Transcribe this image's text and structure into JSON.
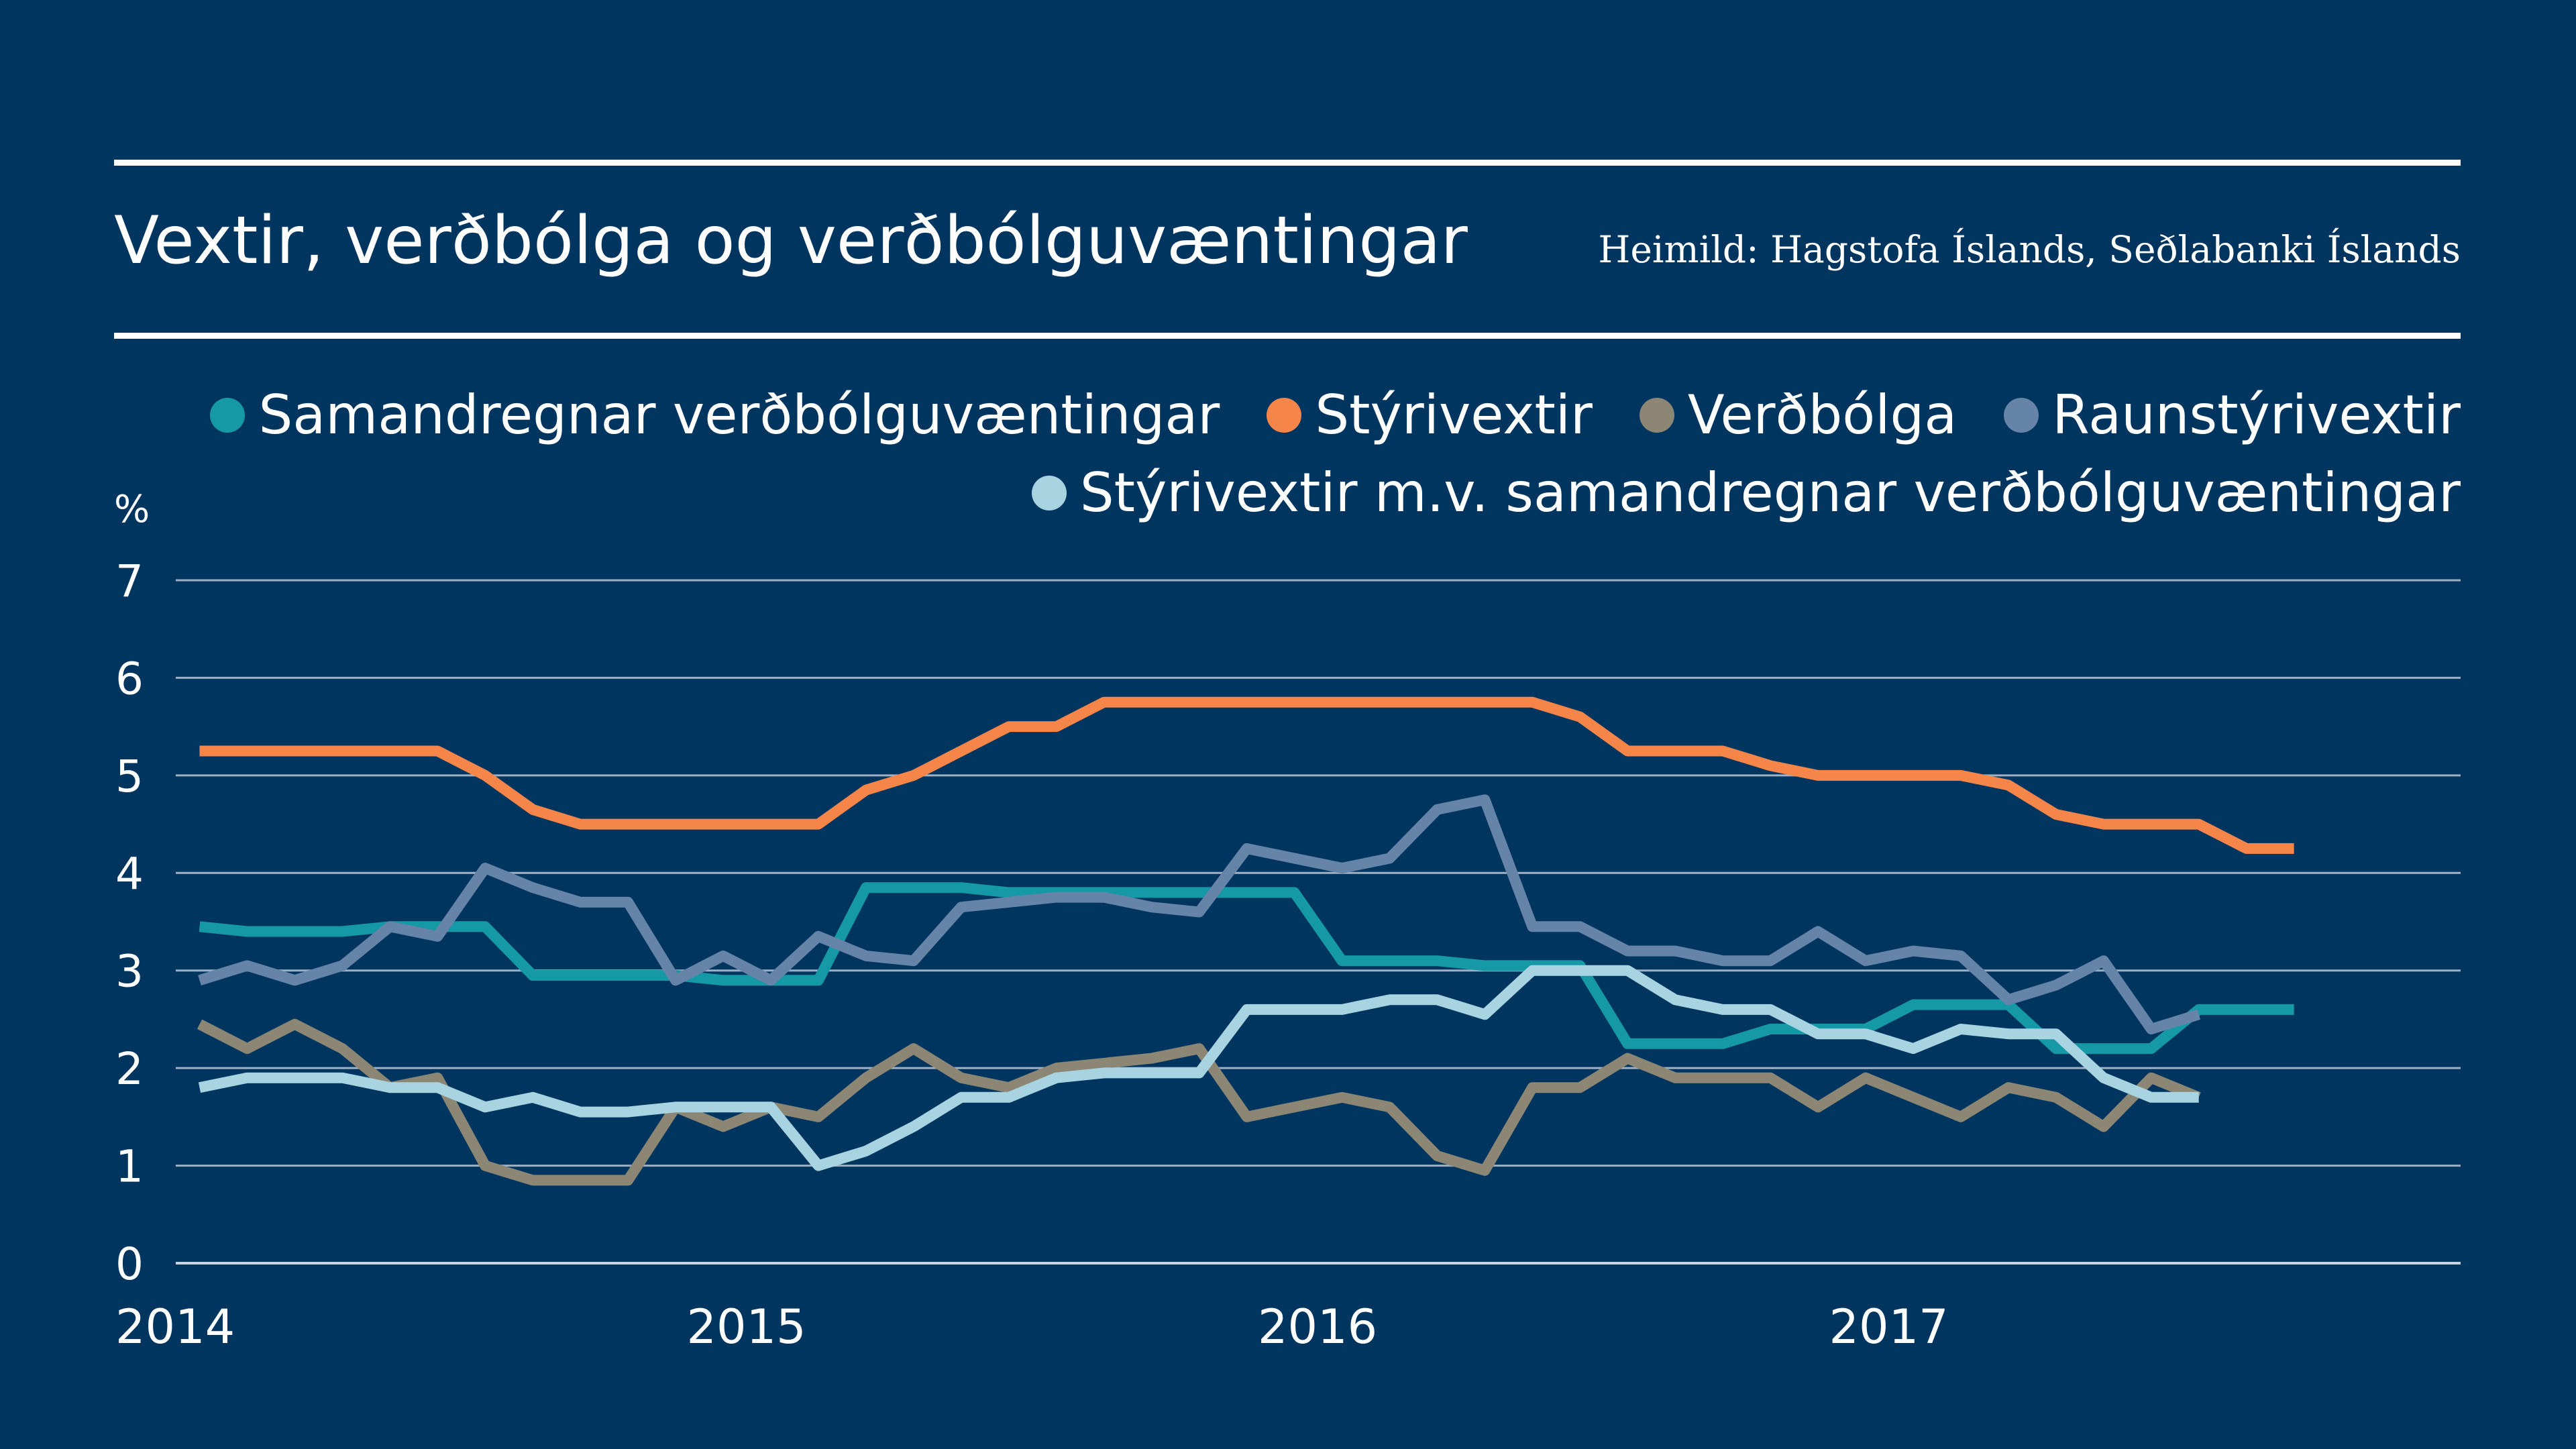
{
  "title": "Vextir, verðbólga og verðbólguvæntingar",
  "source": "Heimild: Hagstofa Íslands, Seðlabanki Íslands",
  "legend": [
    {
      "label": "Samandregnar verðbólguvæntingar",
      "color": "#1599a6"
    },
    {
      "label": "Stýrivextir",
      "color": "#f58549"
    },
    {
      "label": "Verðbólga",
      "color": "#8c8674"
    },
    {
      "label": "Raunstýrivextir",
      "color": "#6584a8"
    },
    {
      "label": "Stýrivextir m.v. samandregnar verðbólguvæntingar",
      "color": "#a8d3e0"
    }
  ],
  "chart_data": {
    "type": "line",
    "ylabel": "%",
    "ylim": [
      0,
      7
    ],
    "yticks": [
      "0",
      "1",
      "2",
      "3",
      "4",
      "5",
      "6",
      "7"
    ],
    "xlim": [
      "2014-01",
      "2017-12"
    ],
    "xticks": [
      "2014",
      "2015",
      "2016",
      "2017"
    ],
    "x": [
      "2014-01",
      "2014-02",
      "2014-03",
      "2014-04",
      "2014-05",
      "2014-06",
      "2014-07",
      "2014-08",
      "2014-09",
      "2014-10",
      "2014-11",
      "2014-12",
      "2015-01",
      "2015-02",
      "2015-03",
      "2015-04",
      "2015-05",
      "2015-06",
      "2015-07",
      "2015-08",
      "2015-09",
      "2015-10",
      "2015-11",
      "2015-12",
      "2016-01",
      "2016-02",
      "2016-03",
      "2016-04",
      "2016-05",
      "2016-06",
      "2016-07",
      "2016-08",
      "2016-09",
      "2016-10",
      "2016-11",
      "2016-12",
      "2017-01",
      "2017-02",
      "2017-03",
      "2017-04",
      "2017-05",
      "2017-06",
      "2017-07",
      "2017-08",
      "2017-09",
      "2017-10",
      "2017-11",
      "2017-12"
    ],
    "grid": true,
    "series": [
      {
        "name": "Samandregnar verðbólguvæntingar",
        "color": "#1599a6",
        "values": [
          3.45,
          3.4,
          3.4,
          3.4,
          3.45,
          3.45,
          3.45,
          2.95,
          2.95,
          2.95,
          2.95,
          2.9,
          2.9,
          2.9,
          3.85,
          3.85,
          3.85,
          3.8,
          3.8,
          3.8,
          3.8,
          3.8,
          3.8,
          3.8,
          3.1,
          3.1,
          3.1,
          3.05,
          3.05,
          3.05,
          2.25,
          2.25,
          2.25,
          2.4,
          2.4,
          2.4,
          2.65,
          2.65,
          2.65,
          2.2,
          2.2,
          2.2,
          2.6,
          2.6,
          2.6,
          null,
          null,
          null
        ]
      },
      {
        "name": "Stýrivextir",
        "color": "#f58549",
        "values": [
          5.25,
          5.25,
          5.25,
          5.25,
          5.25,
          5.25,
          5.0,
          4.65,
          4.5,
          4.5,
          4.5,
          4.5,
          4.5,
          4.5,
          4.85,
          5.0,
          5.25,
          5.5,
          5.5,
          5.75,
          5.75,
          5.75,
          5.75,
          5.75,
          5.75,
          5.75,
          5.75,
          5.75,
          5.75,
          5.6,
          5.25,
          5.25,
          5.25,
          5.1,
          5.0,
          5.0,
          5.0,
          5.0,
          4.9,
          4.6,
          4.5,
          4.5,
          4.5,
          4.25,
          4.25,
          null,
          null,
          null
        ]
      },
      {
        "name": "Verðbólga",
        "color": "#8c8674",
        "values": [
          2.45,
          2.2,
          2.45,
          2.2,
          1.8,
          1.9,
          1.0,
          0.85,
          0.85,
          0.85,
          1.6,
          1.4,
          1.6,
          1.5,
          1.9,
          2.2,
          1.9,
          1.8,
          2.0,
          2.05,
          2.1,
          2.2,
          1.5,
          1.6,
          1.7,
          1.6,
          1.1,
          0.95,
          1.8,
          1.8,
          2.1,
          1.9,
          1.9,
          1.9,
          1.6,
          1.9,
          1.7,
          1.5,
          1.8,
          1.7,
          1.4,
          1.9,
          1.7,
          null,
          null,
          null,
          null,
          null
        ]
      },
      {
        "name": "Raunstýrivextir",
        "color": "#6584a8",
        "values": [
          2.9,
          3.05,
          2.9,
          3.05,
          3.45,
          3.35,
          4.05,
          3.85,
          3.7,
          3.7,
          2.9,
          3.15,
          2.9,
          3.35,
          3.15,
          3.1,
          3.65,
          3.7,
          3.75,
          3.75,
          3.65,
          3.6,
          4.25,
          4.15,
          4.05,
          4.15,
          4.65,
          4.75,
          3.45,
          3.45,
          3.2,
          3.2,
          3.1,
          3.1,
          3.4,
          3.1,
          3.2,
          3.15,
          2.7,
          2.85,
          3.1,
          2.4,
          2.55,
          null,
          null,
          null,
          null,
          null
        ]
      },
      {
        "name": "Stýrivextir m.v. samandregnar verðbólguvæntingar",
        "color": "#a8d3e0",
        "values": [
          1.8,
          1.9,
          1.9,
          1.9,
          1.8,
          1.8,
          1.6,
          1.7,
          1.55,
          1.55,
          1.6,
          1.6,
          1.6,
          1.0,
          1.15,
          1.4,
          1.7,
          1.7,
          1.9,
          1.95,
          1.95,
          1.95,
          2.6,
          2.6,
          2.6,
          2.7,
          2.7,
          2.55,
          3.0,
          3.0,
          3.0,
          2.7,
          2.6,
          2.6,
          2.35,
          2.35,
          2.2,
          2.4,
          2.35,
          2.35,
          1.9,
          1.7,
          1.7,
          null,
          null,
          null,
          null,
          null
        ]
      }
    ]
  }
}
